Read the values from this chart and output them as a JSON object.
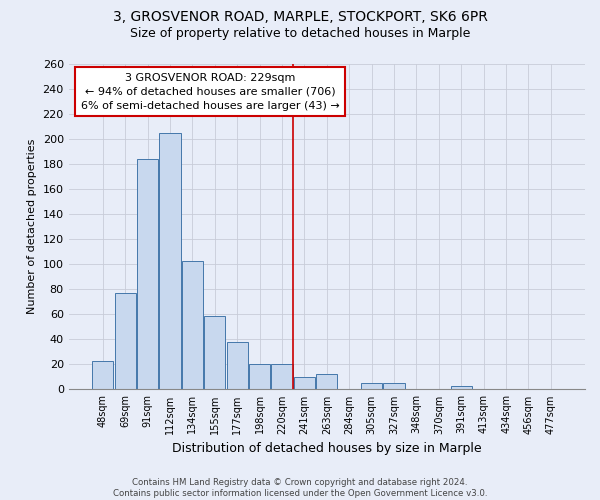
{
  "title1": "3, GROSVENOR ROAD, MARPLE, STOCKPORT, SK6 6PR",
  "title2": "Size of property relative to detached houses in Marple",
  "xlabel": "Distribution of detached houses by size in Marple",
  "ylabel": "Number of detached properties",
  "bar_labels": [
    "48sqm",
    "69sqm",
    "91sqm",
    "112sqm",
    "134sqm",
    "155sqm",
    "177sqm",
    "198sqm",
    "220sqm",
    "241sqm",
    "263sqm",
    "284sqm",
    "305sqm",
    "327sqm",
    "348sqm",
    "370sqm",
    "391sqm",
    "413sqm",
    "434sqm",
    "456sqm",
    "477sqm"
  ],
  "bar_values": [
    23,
    77,
    184,
    205,
    103,
    59,
    38,
    20,
    20,
    10,
    12,
    0,
    5,
    5,
    0,
    0,
    3,
    0,
    0,
    0,
    0
  ],
  "bar_color": "#c8d8ee",
  "bar_edge_color": "#4477aa",
  "vline_x_index": 9,
  "vline_color": "#cc0000",
  "annotation_title": "3 GROSVENOR ROAD: 229sqm",
  "annotation_line1": "← 94% of detached houses are smaller (706)",
  "annotation_line2": "6% of semi-detached houses are larger (43) →",
  "annotation_box_color": "white",
  "annotation_border_color": "#cc0000",
  "footer1": "Contains HM Land Registry data © Crown copyright and database right 2024.",
  "footer2": "Contains public sector information licensed under the Open Government Licence v3.0.",
  "ylim": [
    0,
    260
  ],
  "yticks": [
    0,
    20,
    40,
    60,
    80,
    100,
    120,
    140,
    160,
    180,
    200,
    220,
    240,
    260
  ],
  "bg_color": "#e8edf8",
  "title1_fontsize": 10,
  "title2_fontsize": 9,
  "grid_color": "#c8ccd8"
}
